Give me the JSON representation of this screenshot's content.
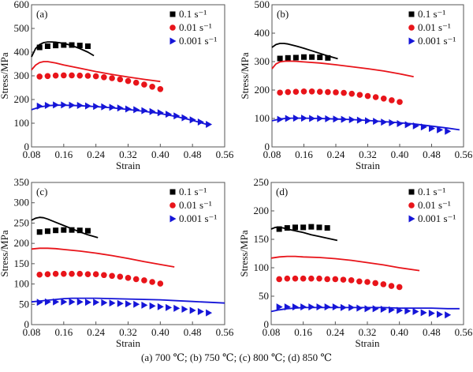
{
  "caption": "(a) 700 ℃;  (b) 750 ℃;  (c) 800 ℃;  (d) 850 ℃",
  "chart_data": [
    {
      "type": "line",
      "panel_label": "(a)",
      "xlabel": "Strain",
      "ylabel": "Stress/MPa",
      "xlim": [
        0.08,
        0.56
      ],
      "ylim": [
        0,
        600
      ],
      "xticks": [
        "0.08",
        "0.16",
        "0.24",
        "0.32",
        "0.40",
        "0.48",
        "0.56"
      ],
      "yticks": [
        "0",
        "100",
        "200",
        "300",
        "400",
        "500",
        "600"
      ],
      "legend_position": "top-right",
      "series": [
        {
          "name": "0.1 s⁻¹",
          "color": "#000000",
          "marker": "square",
          "experimental": {
            "x": [
              0.1,
              0.12,
              0.14,
              0.16,
              0.18,
              0.2,
              0.22
            ],
            "y": [
              420,
              425,
              428,
              430,
              430,
              428,
              425
            ]
          },
          "predicted": {
            "x": [
              0.08,
              0.09,
              0.1,
              0.11,
              0.12,
              0.13,
              0.14,
              0.16,
              0.18,
              0.2,
              0.22,
              0.235
            ],
            "y": [
              380,
              415,
              432,
              440,
              443,
              443,
              442,
              437,
              428,
              415,
              400,
              385
            ]
          }
        },
        {
          "name": "0.01 s⁻¹",
          "color": "#e8141a",
          "marker": "circle",
          "experimental": {
            "x": [
              0.1,
              0.12,
              0.14,
              0.16,
              0.18,
              0.2,
              0.22,
              0.24,
              0.26,
              0.28,
              0.3,
              0.32,
              0.34,
              0.36,
              0.38,
              0.4
            ],
            "y": [
              297,
              299,
              301,
              302,
              302,
              301,
              300,
              298,
              294,
              290,
              285,
              278,
              271,
              263,
              254,
              244
            ]
          },
          "predicted": {
            "x": [
              0.08,
              0.09,
              0.1,
              0.11,
              0.12,
              0.14,
              0.16,
              0.2,
              0.24,
              0.28,
              0.32,
              0.36,
              0.4
            ],
            "y": [
              325,
              345,
              356,
              360,
              360,
              354,
              346,
              332,
              318,
              306,
              295,
              285,
              276
            ]
          }
        },
        {
          "name": "0.001 s⁻¹",
          "color": "#1515d8",
          "marker": "triangle-right",
          "experimental": {
            "x": [
              0.1,
              0.12,
              0.14,
              0.16,
              0.18,
              0.2,
              0.22,
              0.24,
              0.26,
              0.28,
              0.3,
              0.32,
              0.34,
              0.36,
              0.38,
              0.4,
              0.42,
              0.44,
              0.46,
              0.48,
              0.5,
              0.52
            ],
            "y": [
              172,
              175,
              177,
              177,
              176,
              175,
              173,
              171,
              169,
              167,
              164,
              160,
              157,
              153,
              149,
              144,
              138,
              131,
              123,
              114,
              105,
              95
            ]
          },
          "predicted": {
            "x": [
              0.08,
              0.1,
              0.12,
              0.14,
              0.16,
              0.2,
              0.24,
              0.28,
              0.32,
              0.36,
              0.4,
              0.44,
              0.48,
              0.52
            ],
            "y": [
              157,
              168,
              174,
              176,
              176,
              174,
              170,
              165,
              158,
              150,
              141,
              128,
              112,
              93
            ]
          }
        }
      ]
    },
    {
      "type": "line",
      "panel_label": "(b)",
      "xlabel": "Strain",
      "ylabel": "Stress/MPa",
      "xlim": [
        0.08,
        0.56
      ],
      "ylim": [
        0,
        500
      ],
      "xticks": [
        "0.08",
        "0.16",
        "0.24",
        "0.32",
        "0.40",
        "0.48",
        "0.56"
      ],
      "yticks": [
        "0",
        "100",
        "200",
        "300",
        "400",
        "500"
      ],
      "legend_position": "top-right",
      "series": [
        {
          "name": "0.1 s⁻¹",
          "color": "#000000",
          "marker": "square",
          "experimental": {
            "x": [
              0.1,
              0.12,
              0.14,
              0.16,
              0.18,
              0.2,
              0.22
            ],
            "y": [
              311,
              313,
              314,
              316,
              316,
              315,
              313
            ]
          },
          "predicted": {
            "x": [
              0.08,
              0.09,
              0.1,
              0.11,
              0.12,
              0.14,
              0.16,
              0.18,
              0.2,
              0.22,
              0.245
            ],
            "y": [
              350,
              360,
              364,
              364,
              362,
              355,
              347,
              338,
              329,
              320,
              310
            ]
          }
        },
        {
          "name": "0.01 s⁻¹",
          "color": "#e8141a",
          "marker": "circle",
          "experimental": {
            "x": [
              0.1,
              0.12,
              0.14,
              0.16,
              0.18,
              0.2,
              0.22,
              0.24,
              0.26,
              0.28,
              0.3,
              0.32,
              0.34,
              0.36,
              0.38,
              0.4
            ],
            "y": [
              191,
              193,
              194,
              195,
              195,
              194,
              193,
              192,
              190,
              187,
              183,
              179,
              175,
              170,
              164,
              158
            ]
          },
          "predicted": {
            "x": [
              0.08,
              0.09,
              0.1,
              0.11,
              0.12,
              0.14,
              0.16,
              0.2,
              0.24,
              0.28,
              0.32,
              0.36,
              0.4,
              0.435
            ],
            "y": [
              275,
              292,
              299,
              301,
              302,
              301,
              299,
              295,
              289,
              282,
              275,
              267,
              257,
              247
            ]
          }
        },
        {
          "name": "0.001 s⁻¹",
          "color": "#1515d8",
          "marker": "triangle-right",
          "experimental": {
            "x": [
              0.1,
              0.12,
              0.14,
              0.16,
              0.18,
              0.2,
              0.22,
              0.24,
              0.26,
              0.28,
              0.3,
              0.32,
              0.34,
              0.36,
              0.38,
              0.4,
              0.42,
              0.44,
              0.46,
              0.48,
              0.5,
              0.52
            ],
            "y": [
              97,
              100,
              101,
              101,
              100,
              100,
              99,
              98,
              97,
              96,
              94,
              92,
              90,
              87,
              85,
              82,
              78,
              74,
              70,
              65,
              60,
              55
            ]
          },
          "predicted": {
            "x": [
              0.08,
              0.1,
              0.12,
              0.14,
              0.16,
              0.2,
              0.24,
              0.28,
              0.32,
              0.36,
              0.4,
              0.44,
              0.48,
              0.52,
              0.55
            ],
            "y": [
              92,
              98,
              101,
              101,
              101,
              100,
              98,
              96,
              93,
              89,
              85,
              80,
              73,
              66,
              60
            ]
          }
        }
      ]
    },
    {
      "type": "line",
      "panel_label": "(c)",
      "xlabel": "Strain",
      "ylabel": "Stress/MPa",
      "xlim": [
        0.08,
        0.56
      ],
      "ylim": [
        0,
        350
      ],
      "xticks": [
        "0.08",
        "0.16",
        "0.24",
        "0.32",
        "0.40",
        "0.48",
        "0.56"
      ],
      "yticks": [
        "0",
        "50",
        "100",
        "150",
        "200",
        "250",
        "300",
        "350"
      ],
      "legend_position": "top-right",
      "series": [
        {
          "name": "0.1 s⁻¹",
          "color": "#000000",
          "marker": "square",
          "experimental": {
            "x": [
              0.1,
              0.12,
              0.14,
              0.16,
              0.18,
              0.2,
              0.22
            ],
            "y": [
              228,
              230,
              232,
              233,
              233,
              232,
              231
            ]
          },
          "predicted": {
            "x": [
              0.08,
              0.09,
              0.1,
              0.11,
              0.12,
              0.14,
              0.16,
              0.18,
              0.2,
              0.22,
              0.245
            ],
            "y": [
              257,
              262,
              264,
              263,
              260,
              252,
              244,
              236,
              228,
              221,
              214
            ]
          }
        },
        {
          "name": "0.01 s⁻¹",
          "color": "#e8141a",
          "marker": "circle",
          "experimental": {
            "x": [
              0.1,
              0.12,
              0.14,
              0.16,
              0.18,
              0.2,
              0.22,
              0.24,
              0.26,
              0.28,
              0.3,
              0.32,
              0.34,
              0.36,
              0.38,
              0.4
            ],
            "y": [
              123,
              124,
              125,
              125,
              125,
              125,
              124,
              124,
              122,
              120,
              118,
              115,
              112,
              109,
              105,
              101
            ]
          },
          "predicted": {
            "x": [
              0.08,
              0.1,
              0.12,
              0.14,
              0.16,
              0.2,
              0.24,
              0.28,
              0.32,
              0.36,
              0.4,
              0.435
            ],
            "y": [
              186,
              188,
              188,
              187,
              185,
              181,
              176,
              170,
              163,
              155,
              148,
              142
            ]
          }
        },
        {
          "name": "0.001 s⁻¹",
          "color": "#1515d8",
          "marker": "triangle-right",
          "experimental": {
            "x": [
              0.1,
              0.12,
              0.14,
              0.16,
              0.18,
              0.2,
              0.22,
              0.24,
              0.26,
              0.28,
              0.3,
              0.32,
              0.34,
              0.36,
              0.38,
              0.4,
              0.42,
              0.44,
              0.46,
              0.48,
              0.5,
              0.52
            ],
            "y": [
              55,
              56,
              56,
              56,
              56,
              56,
              55,
              55,
              54,
              53,
              52,
              51,
              50,
              48,
              46,
              44,
              42,
              40,
              38,
              35,
              32,
              29
            ]
          },
          "predicted": {
            "x": [
              0.08,
              0.1,
              0.12,
              0.14,
              0.16,
              0.18,
              0.2,
              0.24,
              0.28,
              0.32,
              0.36,
              0.4,
              0.44,
              0.48,
              0.52,
              0.56
            ],
            "y": [
              56,
              58,
              60,
              62,
              64,
              65,
              65,
              65,
              64,
              63,
              62,
              61,
              59,
              57,
              55,
              53
            ]
          }
        }
      ]
    },
    {
      "type": "line",
      "panel_label": "(d)",
      "xlabel": "Strain",
      "ylabel": "Stress/MPa",
      "xlim": [
        0.08,
        0.56
      ],
      "ylim": [
        0,
        250
      ],
      "xticks": [
        "0.08",
        "0.16",
        "0.24",
        "0.32",
        "0.40",
        "0.48",
        "0.56"
      ],
      "yticks": [
        "0",
        "50",
        "100",
        "150",
        "200",
        "250"
      ],
      "legend_position": "top-right",
      "series": [
        {
          "name": "0.1 s⁻¹",
          "color": "#000000",
          "marker": "square",
          "experimental": {
            "x": [
              0.1,
              0.12,
              0.14,
              0.16,
              0.18,
              0.2,
              0.22
            ],
            "y": [
              168,
              170,
              171,
              171,
              172,
              171,
              170
            ]
          },
          "predicted": {
            "x": [
              0.08,
              0.09,
              0.1,
              0.11,
              0.12,
              0.14,
              0.16,
              0.18,
              0.2,
              0.22,
              0.245
            ],
            "y": [
              168,
              171,
              171,
              170,
              168,
              165,
              162,
              158,
              155,
              152,
              148
            ]
          }
        },
        {
          "name": "0.01 s⁻¹",
          "color": "#e8141a",
          "marker": "circle",
          "experimental": {
            "x": [
              0.1,
              0.12,
              0.14,
              0.16,
              0.18,
              0.2,
              0.22,
              0.24,
              0.26,
              0.28,
              0.3,
              0.32,
              0.34,
              0.36,
              0.38,
              0.4
            ],
            "y": [
              80,
              81,
              81,
              81,
              81,
              81,
              80,
              80,
              79,
              78,
              76,
              75,
              73,
              71,
              68,
              66
            ]
          },
          "predicted": {
            "x": [
              0.08,
              0.1,
              0.12,
              0.14,
              0.16,
              0.2,
              0.24,
              0.28,
              0.32,
              0.36,
              0.4,
              0.45
            ],
            "y": [
              117,
              119,
              120,
              120,
              119,
              118,
              116,
              113,
              109,
              105,
              100,
              95
            ]
          }
        },
        {
          "name": "0.001 s⁻¹",
          "color": "#1515d8",
          "marker": "triangle-right",
          "experimental": {
            "x": [
              0.1,
              0.12,
              0.14,
              0.16,
              0.18,
              0.2,
              0.22,
              0.24,
              0.26,
              0.28,
              0.3,
              0.32,
              0.34,
              0.36,
              0.38,
              0.4,
              0.42,
              0.44,
              0.46,
              0.48,
              0.5,
              0.52
            ],
            "y": [
              31,
              31,
              31,
              31,
              31,
              31,
              31,
              31,
              30,
              30,
              29,
              28,
              28,
              27,
              26,
              25,
              24,
              23,
              21,
              20,
              18,
              17
            ]
          },
          "predicted": {
            "x": [
              0.08,
              0.1,
              0.12,
              0.14,
              0.16,
              0.2,
              0.24,
              0.28,
              0.32,
              0.36,
              0.4,
              0.44,
              0.48,
              0.52,
              0.55
            ],
            "y": [
              23,
              26,
              28,
              29,
              30,
              30,
              30,
              30,
              30,
              30,
              29,
              29,
              29,
              28,
              28
            ]
          }
        }
      ]
    }
  ]
}
